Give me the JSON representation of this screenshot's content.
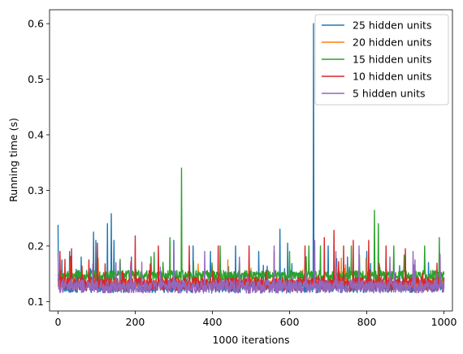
{
  "chart_data": {
    "type": "line",
    "title": "",
    "xlabel": "1000 iterations",
    "ylabel": "Running time (s)",
    "xlim": [
      -22,
      1022
    ],
    "ylim": [
      0.083,
      0.625
    ],
    "xticks": [
      0,
      200,
      400,
      600,
      800,
      1000
    ],
    "yticks": [
      0.1,
      0.2,
      0.3,
      0.4,
      0.5,
      0.6
    ],
    "xtick_labels": [
      "0",
      "200",
      "400",
      "600",
      "800",
      "1000"
    ],
    "ytick_labels": [
      "0.1",
      "0.2",
      "0.3",
      "0.4",
      "0.5",
      "0.6"
    ],
    "grid": false,
    "legend_position": "top-right",
    "series": [
      {
        "name": "25 hidden units",
        "color": "#1f77b4",
        "baseline": 0.128,
        "noise": 0.012,
        "spikes": [
          [
            0,
            0.238
          ],
          [
            10,
            0.175
          ],
          [
            30,
            0.19
          ],
          [
            60,
            0.18
          ],
          [
            92,
            0.225
          ],
          [
            98,
            0.21
          ],
          [
            128,
            0.24
          ],
          [
            138,
            0.258
          ],
          [
            145,
            0.21
          ],
          [
            190,
            0.18
          ],
          [
            300,
            0.21
          ],
          [
            350,
            0.2
          ],
          [
            395,
            0.19
          ],
          [
            460,
            0.2
          ],
          [
            520,
            0.19
          ],
          [
            575,
            0.23
          ],
          [
            595,
            0.205
          ],
          [
            662,
            0.6
          ],
          [
            700,
            0.2
          ],
          [
            750,
            0.18
          ],
          [
            800,
            0.19
          ],
          [
            900,
            0.18
          ],
          [
            960,
            0.17
          ]
        ],
        "values": []
      },
      {
        "name": "20 hidden units",
        "color": "#ff7f0e",
        "baseline": 0.132,
        "noise": 0.006,
        "spikes": [
          [
            5,
            0.165
          ],
          [
            40,
            0.15
          ],
          [
            120,
            0.15
          ],
          [
            500,
            0.16
          ]
        ],
        "values": []
      },
      {
        "name": "15 hidden units",
        "color": "#2ca02c",
        "baseline": 0.147,
        "noise": 0.009,
        "spikes": [
          [
            320,
            0.34
          ],
          [
            290,
            0.215
          ],
          [
            420,
            0.2
          ],
          [
            600,
            0.19
          ],
          [
            650,
            0.2
          ],
          [
            680,
            0.2
          ],
          [
            760,
            0.2
          ],
          [
            820,
            0.264
          ],
          [
            830,
            0.24
          ],
          [
            870,
            0.2
          ],
          [
            950,
            0.2
          ],
          [
            988,
            0.215
          ]
        ],
        "values": []
      },
      {
        "name": "10 hidden units",
        "color": "#d62728",
        "baseline": 0.132,
        "noise": 0.012,
        "spikes": [
          [
            5,
            0.19
          ],
          [
            35,
            0.195
          ],
          [
            80,
            0.175
          ],
          [
            102,
            0.205
          ],
          [
            200,
            0.218
          ],
          [
            260,
            0.2
          ],
          [
            340,
            0.2
          ],
          [
            415,
            0.2
          ],
          [
            495,
            0.2
          ],
          [
            560,
            0.19
          ],
          [
            640,
            0.2
          ],
          [
            690,
            0.215
          ],
          [
            715,
            0.228
          ],
          [
            740,
            0.2
          ],
          [
            765,
            0.21
          ],
          [
            805,
            0.21
          ],
          [
            850,
            0.2
          ],
          [
            900,
            0.195
          ]
        ],
        "values": []
      },
      {
        "name": "5 hidden units",
        "color": "#9467bd",
        "baseline": 0.127,
        "noise": 0.012,
        "spikes": [
          [
            0,
            0.188
          ],
          [
            150,
            0.17
          ],
          [
            300,
            0.2
          ],
          [
            380,
            0.19
          ],
          [
            470,
            0.18
          ],
          [
            560,
            0.2
          ],
          [
            665,
            0.21
          ],
          [
            720,
            0.19
          ],
          [
            780,
            0.2
          ],
          [
            860,
            0.18
          ],
          [
            920,
            0.19
          ],
          [
            990,
            0.185
          ]
        ],
        "values": []
      }
    ]
  }
}
